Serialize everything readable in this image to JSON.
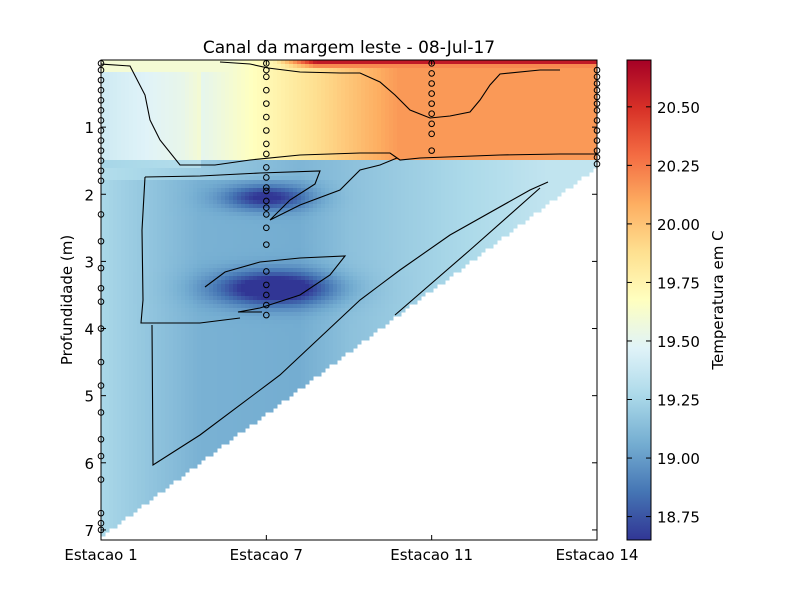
{
  "chart_data": {
    "type": "heatmap",
    "title": "Canal da margem leste - 08-Jul-17",
    "xlabel": "",
    "ylabel": "Profundidade (m)",
    "x_categories": [
      "Estacao 1",
      "Estacao 7",
      "Estacao 11",
      "Estacao 14"
    ],
    "y_ticks": [
      1,
      2,
      3,
      4,
      5,
      6,
      7
    ],
    "ylim": [
      7.15,
      0.0
    ],
    "y_inverted": true,
    "colorbar": {
      "label": "Temperatura em C",
      "min": 18.65,
      "max": 20.7,
      "ticks": [
        18.75,
        19.0,
        19.25,
        19.5,
        19.75,
        20.0,
        20.25,
        20.5
      ],
      "tick_labels": [
        "18.75",
        "19.00",
        "19.25",
        "19.50",
        "19.75",
        "20.00",
        "20.25",
        "20.50"
      ],
      "colormap": "RdYlBu_r"
    },
    "stations": [
      {
        "name": "Estacao 1",
        "x_index": 0,
        "max_depth": 7.1,
        "depths": [
          0.05,
          0.15,
          0.3,
          0.45,
          0.6,
          0.75,
          0.9,
          1.05,
          1.2,
          1.35,
          1.5,
          1.65,
          1.8,
          2.3,
          2.7,
          3.1,
          3.4,
          3.6,
          4.0,
          4.5,
          4.85,
          5.25,
          5.65,
          5.9,
          6.25,
          6.75,
          6.9,
          7.0
        ]
      },
      {
        "name": "Estacao 7",
        "x_index": 1,
        "max_depth": 3.8,
        "depths": [
          0.05,
          0.15,
          0.25,
          0.45,
          0.65,
          0.85,
          1.05,
          1.25,
          1.4,
          1.6,
          1.75,
          1.9,
          1.95,
          2.1,
          2.2,
          2.3,
          2.5,
          2.75,
          3.15,
          3.35,
          3.5,
          3.65,
          3.8
        ]
      },
      {
        "name": "Estacao 11",
        "x_index": 2,
        "max_depth": 1.4,
        "depths": [
          0.05,
          0.2,
          0.35,
          0.5,
          0.65,
          0.8,
          0.95,
          1.1,
          1.35
        ]
      },
      {
        "name": "Estacao 14",
        "x_index": 3,
        "max_depth": 1.6,
        "depths": [
          0.15,
          0.25,
          0.35,
          0.45,
          0.55,
          0.65,
          0.75,
          0.9,
          1.05,
          1.2,
          1.35,
          1.45,
          1.55
        ]
      }
    ],
    "temperature_summary": {
      "surface_max": 20.7,
      "cold_core_min": 18.7,
      "cold_core_location": "Estacao 7, 3.3-3.5 m",
      "warm_layer": "0-1.5 m near Estacao 7 to Estacao 14, 20.0-20.7",
      "deep_water": "19.0-19.4"
    },
    "contours": [
      {
        "level": 20.5
      },
      {
        "level": 20.0
      },
      {
        "level": 19.5
      },
      {
        "level": 19.0
      }
    ],
    "colors": {
      "scale": [
        "#313695",
        "#4575b4",
        "#74add1",
        "#abd9e9",
        "#e0f3f8",
        "#ffffbf",
        "#fee090",
        "#fdae61",
        "#f46d43",
        "#d73027",
        "#a50026"
      ]
    }
  }
}
